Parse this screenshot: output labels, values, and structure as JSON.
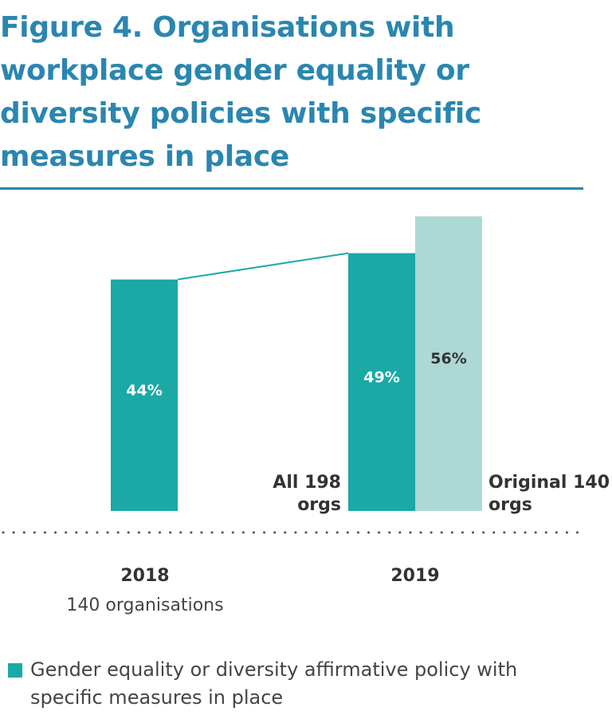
{
  "chart_data": {
    "type": "bar",
    "title": "Figure 4. Organisations with workplace gender equality or diversity policies with specific measures in place",
    "ylim": [
      0,
      60
    ],
    "grid": false,
    "groups": [
      {
        "label": "2018",
        "sublabel": "140 organisations",
        "bars": [
          {
            "value": 44,
            "value_label": "44%",
            "color": "#1ba9a6",
            "text_color": "#ffffff",
            "caption": ""
          }
        ]
      },
      {
        "label": "2019",
        "sublabel": "",
        "bars": [
          {
            "value": 49,
            "value_label": "49%",
            "color": "#1ba9a6",
            "text_color": "#ffffff",
            "caption": "All 198 orgs"
          },
          {
            "value": 56,
            "value_label": "56%",
            "color": "#acd8d5",
            "text_color": "#333333",
            "caption": "Original 140 orgs"
          }
        ]
      }
    ],
    "connector": {
      "from": "2018: 44%",
      "to": "2019: 49%"
    },
    "legend": {
      "position": "bottom-left",
      "entries": [
        {
          "label": "Gender equality or diversity affirmative policy with specific measures in place",
          "color": "#1ba9a6"
        }
      ]
    },
    "colors": {
      "title": "#2a86b0",
      "primary": "#1ba9a6",
      "secondary": "#acd8d5",
      "baseline_dots": "#555555",
      "text": "#333333"
    }
  }
}
